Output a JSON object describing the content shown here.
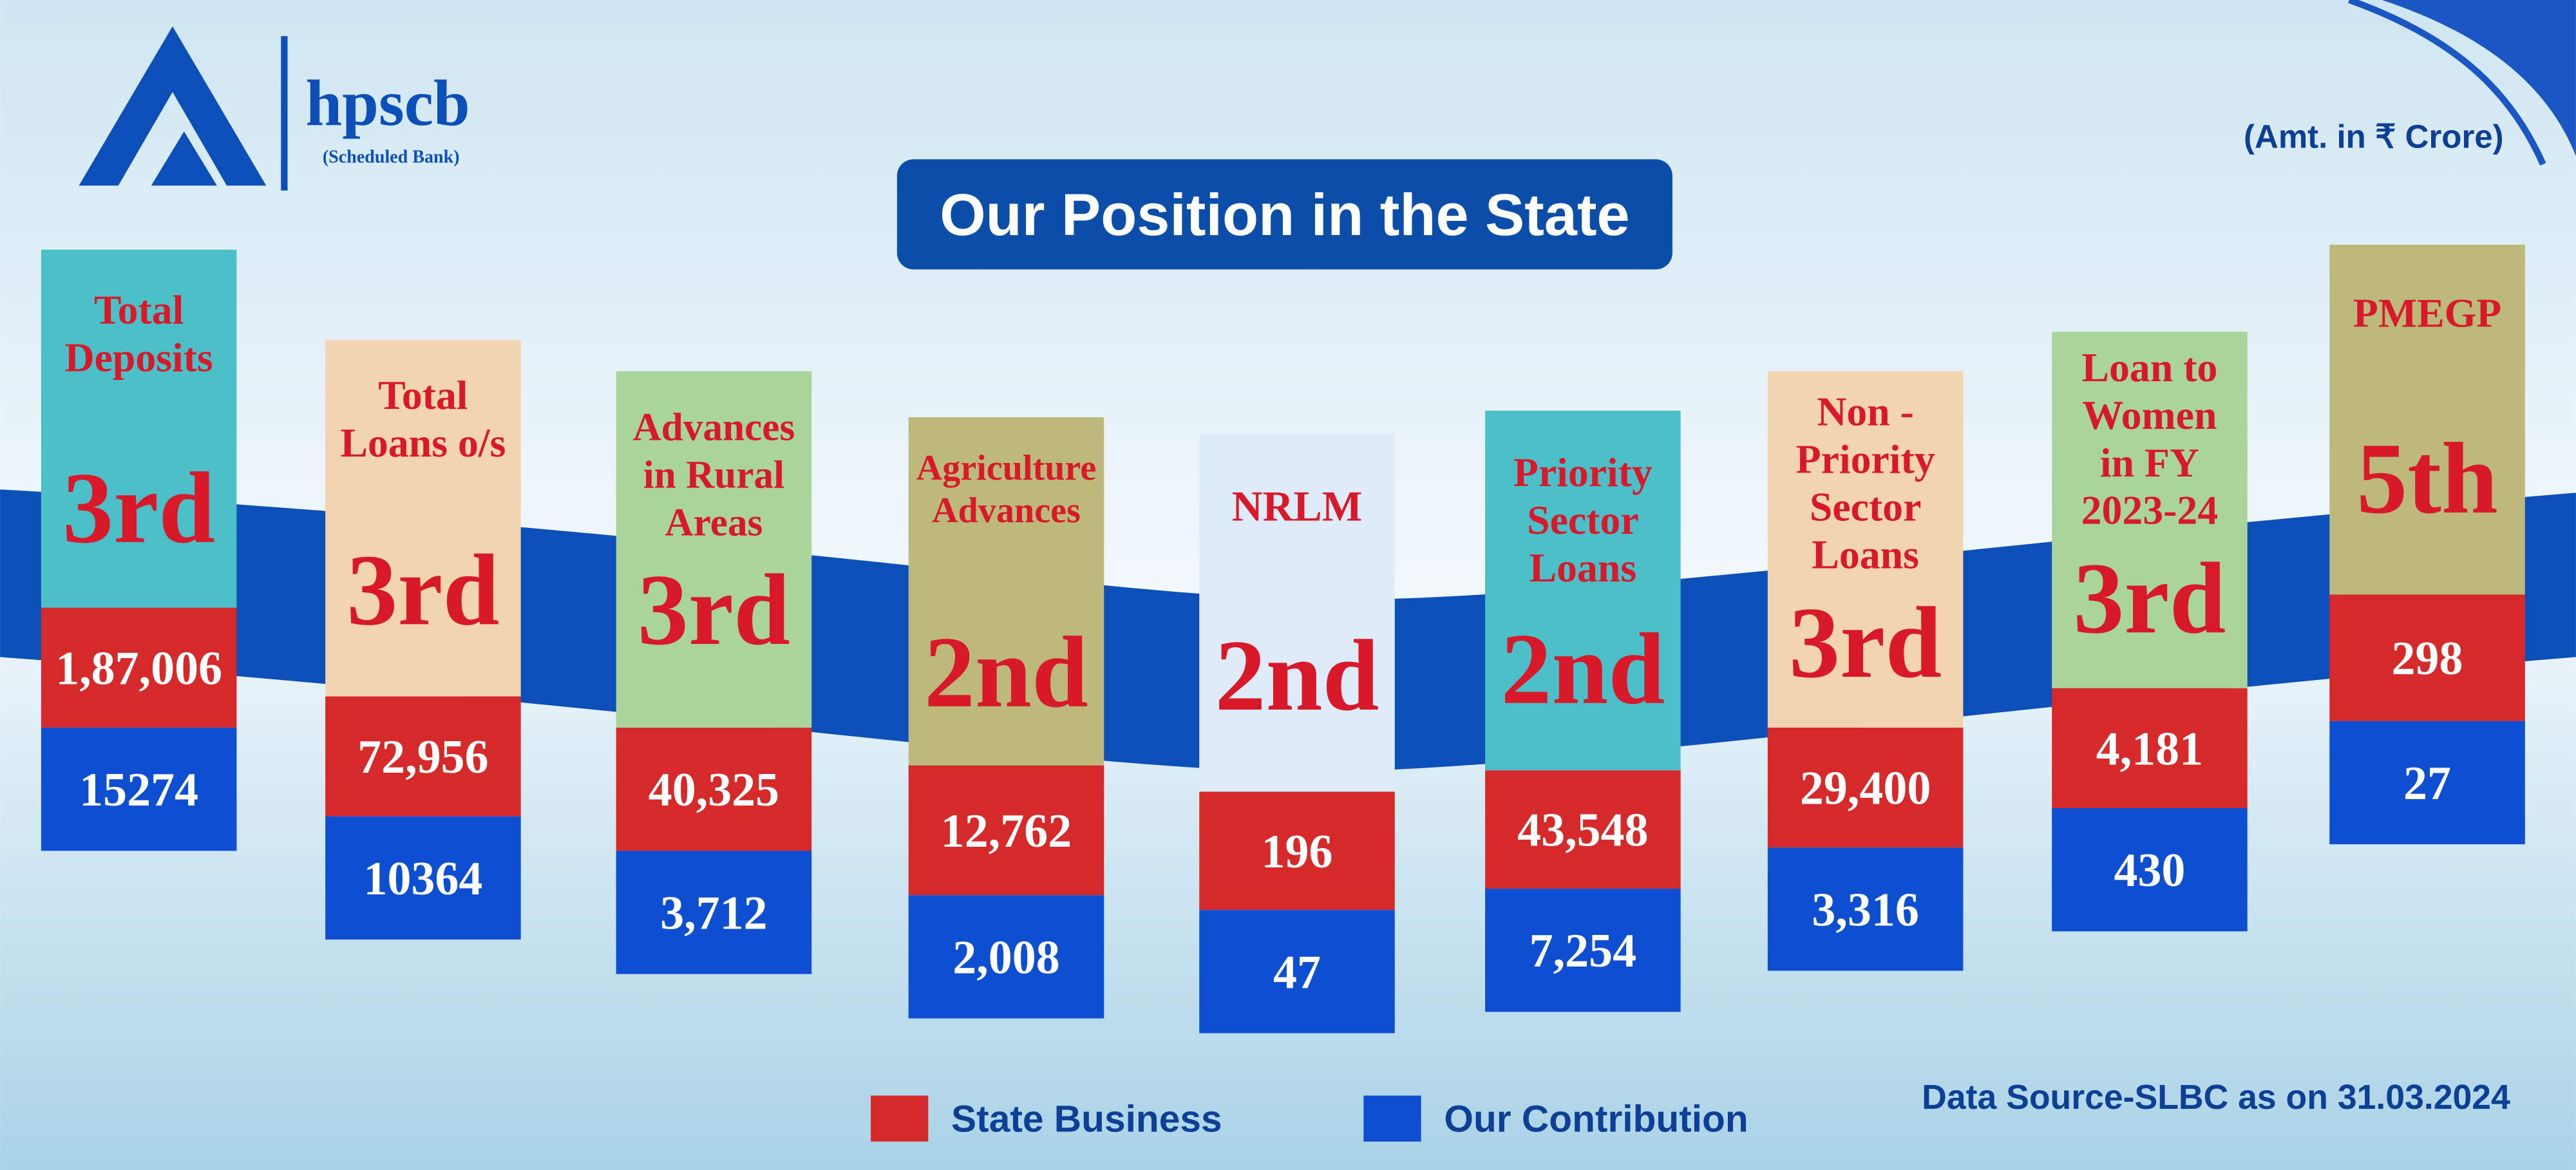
{
  "header": {
    "brand": "hpscb",
    "tagline": "(Scheduled Bank)",
    "unit_note": "(Amt. in ₹ Crore)",
    "title": "Our Position in the State"
  },
  "cards": [
    {
      "label": [
        "Total",
        "Deposits"
      ],
      "rank": "3rd",
      "state_business": "1,87,006",
      "contribution": "15274"
    },
    {
      "label": [
        "Total",
        "Loans o/s"
      ],
      "rank": "3rd",
      "state_business": "72,956",
      "contribution": "10364"
    },
    {
      "label": [
        "Advances",
        "in Rural",
        "Areas"
      ],
      "rank": "3rd",
      "state_business": "40,325",
      "contribution": "3,712"
    },
    {
      "label": [
        "Agriculture",
        "Advances"
      ],
      "rank": "2nd",
      "state_business": "12,762",
      "contribution": "2,008"
    },
    {
      "label": [
        "NRLM"
      ],
      "rank": "2nd",
      "state_business": "196",
      "contribution": "47"
    },
    {
      "label": [
        "Priority",
        "Sector",
        "Loans"
      ],
      "rank": "2nd",
      "state_business": "43,548",
      "contribution": "7,254"
    },
    {
      "label": [
        "Non -",
        "Priority",
        "Sector",
        "Loans"
      ],
      "rank": "3rd",
      "state_business": "29,400",
      "contribution": "3,316"
    },
    {
      "label": [
        "Loan to",
        "Women",
        "in FY",
        "2023-24"
      ],
      "rank": "3rd",
      "state_business": "4,181",
      "contribution": "430"
    },
    {
      "label": [
        "PMEGP"
      ],
      "rank": "5th",
      "state_business": "298",
      "contribution": "27"
    }
  ],
  "legend": {
    "state_business": "State Business",
    "contribution": "Our Contribution"
  },
  "footer": {
    "source": "Data Source-SLBC as on 31.03.2024"
  }
}
